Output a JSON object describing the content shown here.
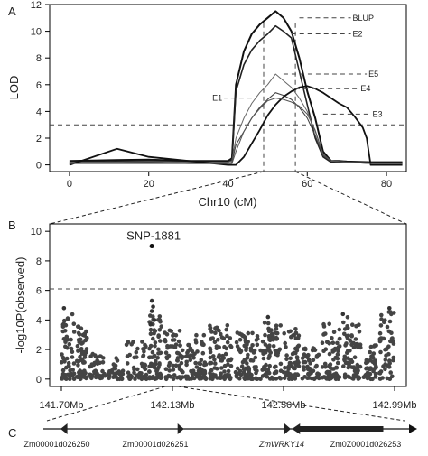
{
  "chart_data": [
    {
      "panel": "A",
      "type": "line",
      "xlabel": "Chr10 (cM)",
      "ylabel": "LOD",
      "xlim": [
        -5,
        85
      ],
      "ylim": [
        -0.5,
        12
      ],
      "xticks": [
        "0",
        "20",
        "40",
        "60",
        "80"
      ],
      "yticks": [
        "0",
        "2",
        "4",
        "6",
        "8",
        "10",
        "12"
      ],
      "threshold": 3.0,
      "series": [
        {
          "name": "BLUP",
          "x": [
            0,
            10,
            20,
            30,
            40,
            41,
            42,
            44,
            46,
            48,
            50,
            52,
            54,
            56,
            58,
            60,
            62,
            64,
            66,
            68,
            70,
            76,
            78,
            84
          ],
          "y": [
            0.3,
            0.35,
            0.4,
            0.3,
            0.3,
            0.5,
            6.0,
            8.5,
            9.8,
            10.5,
            11.0,
            11.5,
            11.0,
            10.0,
            8.0,
            5.5,
            3.5,
            1.0,
            0.3,
            0.3,
            0.25,
            0.2,
            0.2,
            0.2
          ]
        },
        {
          "name": "E2",
          "x": [
            0,
            10,
            20,
            30,
            40,
            41,
            42,
            44,
            46,
            48,
            50,
            52,
            54,
            56,
            58,
            60,
            62,
            64,
            66,
            68,
            70,
            76,
            78,
            84
          ],
          "y": [
            0.2,
            0.25,
            0.3,
            0.2,
            0.2,
            0.4,
            5.5,
            7.5,
            8.6,
            9.3,
            9.8,
            10.4,
            10.0,
            9.5,
            7.0,
            4.5,
            2.0,
            0.6,
            0.2,
            0.2,
            0.2,
            0.15,
            0.15,
            0.15
          ]
        },
        {
          "name": "E5",
          "x": [
            0,
            10,
            20,
            30,
            40,
            41,
            42,
            44,
            46,
            48,
            50,
            52,
            54,
            56,
            58,
            60,
            62,
            64,
            66,
            70,
            76,
            84
          ],
          "y": [
            0.2,
            0.2,
            0.25,
            0.2,
            0.2,
            0.3,
            2.0,
            3.5,
            4.6,
            5.4,
            6.0,
            6.8,
            6.3,
            5.8,
            5.0,
            4.0,
            2.5,
            0.8,
            0.3,
            0.2,
            0.15,
            0.1
          ]
        },
        {
          "name": "E4",
          "x": [
            0,
            10,
            20,
            30,
            40,
            41,
            42,
            44,
            46,
            48,
            50,
            52,
            54,
            56,
            58,
            60,
            62,
            64,
            66,
            70,
            76,
            84
          ],
          "y": [
            0.1,
            0.15,
            0.2,
            0.1,
            0.1,
            0.2,
            1.5,
            2.5,
            3.5,
            4.3,
            4.9,
            5.4,
            5.2,
            4.9,
            4.3,
            3.5,
            2.2,
            0.7,
            0.3,
            0.2,
            0.1,
            0.1
          ]
        },
        {
          "name": "E3",
          "x": [
            0,
            12,
            20,
            30,
            40,
            41,
            42,
            44,
            46,
            48,
            50,
            52,
            54,
            56,
            58,
            60,
            62,
            64,
            66,
            68,
            70,
            72,
            74,
            75,
            76,
            78,
            84
          ],
          "y": [
            0.0,
            1.2,
            0.6,
            0.3,
            0.0,
            0.0,
            0.0,
            0.6,
            1.6,
            2.6,
            3.7,
            4.5,
            5.1,
            5.5,
            5.8,
            5.9,
            5.7,
            5.4,
            5.0,
            4.6,
            4.3,
            3.6,
            2.8,
            2.0,
            0.0,
            0.0,
            0.0
          ]
        },
        {
          "name": "E1",
          "x": [
            0,
            10,
            20,
            30,
            40,
            41,
            42,
            44,
            46,
            48,
            50,
            52,
            54,
            56,
            58,
            60,
            62,
            64,
            66,
            70,
            76,
            84
          ],
          "y": [
            0.1,
            0.1,
            0.1,
            0.1,
            0.1,
            0.1,
            1.0,
            2.5,
            3.5,
            4.2,
            4.8,
            5.0,
            4.9,
            4.7,
            4.4,
            3.8,
            2.6,
            0.8,
            0.3,
            0.2,
            0.1,
            0.1
          ]
        }
      ],
      "labels": [
        "BLUP",
        "E2",
        "E5",
        "E4",
        "E1",
        "E3"
      ],
      "marker_lines_x": [
        49,
        57
      ]
    },
    {
      "panel": "B",
      "type": "scatter",
      "ylabel": "-log10P(observed)",
      "xlim_mb": [
        141.7,
        142.99
      ],
      "ylim": [
        -0.5,
        10.5
      ],
      "xticks": [
        "141.70Mb",
        "142.13Mb",
        "142.56Mb",
        "142.99Mb"
      ],
      "yticks": [
        "0",
        "2",
        "4",
        "6",
        "8",
        "10"
      ],
      "threshold": 6.1,
      "highlight": {
        "label": "SNP-1881",
        "x_mb": 142.05,
        "y": 9.0
      },
      "clusters": [
        {
          "x_mb": [
            141.7,
            141.75
          ],
          "ymax": 4.5,
          "n": 60
        },
        {
          "x_mb": [
            141.76,
            141.8
          ],
          "ymax": 3.6,
          "n": 60
        },
        {
          "x_mb": [
            141.81,
            141.87
          ],
          "ymax": 1.8,
          "n": 35
        },
        {
          "x_mb": [
            141.88,
            141.94
          ],
          "ymax": 1.5,
          "n": 35
        },
        {
          "x_mb": [
            141.95,
            142.03
          ],
          "ymax": 2.6,
          "n": 55
        },
        {
          "x_mb": [
            142.04,
            142.09
          ],
          "ymax": 4.3,
          "n": 70
        },
        {
          "x_mb": [
            142.1,
            142.17
          ],
          "ymax": 3.3,
          "n": 60
        },
        {
          "x_mb": [
            142.18,
            142.26
          ],
          "ymax": 3.0,
          "n": 70
        },
        {
          "x_mb": [
            142.27,
            142.36
          ],
          "ymax": 3.7,
          "n": 85
        },
        {
          "x_mb": [
            142.37,
            142.46
          ],
          "ymax": 3.2,
          "n": 85
        },
        {
          "x_mb": [
            142.47,
            142.55
          ],
          "ymax": 4.0,
          "n": 80
        },
        {
          "x_mb": [
            142.56,
            142.62
          ],
          "ymax": 3.4,
          "n": 60
        },
        {
          "x_mb": [
            142.63,
            142.7
          ],
          "ymax": 2.1,
          "n": 50
        },
        {
          "x_mb": [
            142.71,
            142.78
          ],
          "ymax": 3.8,
          "n": 70
        },
        {
          "x_mb": [
            142.79,
            142.86
          ],
          "ymax": 4.2,
          "n": 70
        },
        {
          "x_mb": [
            142.87,
            142.92
          ],
          "ymax": 2.3,
          "n": 40
        },
        {
          "x_mb": [
            142.93,
            142.99
          ],
          "ymax": 4.6,
          "n": 55
        }
      ],
      "outliers": [
        {
          "x_mb": 142.05,
          "y": 5.3
        },
        {
          "x_mb": 142.055,
          "y": 4.9
        },
        {
          "x_mb": 142.05,
          "y": 4.6
        },
        {
          "x_mb": 142.06,
          "y": 4.0
        },
        {
          "x_mb": 142.045,
          "y": 3.7
        },
        {
          "x_mb": 141.71,
          "y": 4.8
        },
        {
          "x_mb": 142.97,
          "y": 4.8
        },
        {
          "x_mb": 142.5,
          "y": 4.2
        },
        {
          "x_mb": 142.79,
          "y": 4.4
        }
      ]
    },
    {
      "panel": "C",
      "type": "gene-track",
      "genes": [
        {
          "label": "Zm00001d026250",
          "italic": false,
          "start_mb": 142.01,
          "end_mb": 142.022,
          "strand": "-"
        },
        {
          "label": "Zm00001d026251",
          "italic": false,
          "start_mb": 142.215,
          "end_mb": 142.226,
          "strand": "+"
        },
        {
          "label": "ZmWRKY14",
          "italic": true,
          "start_mb": 142.402,
          "end_mb": 142.413,
          "strand": "+"
        },
        {
          "label": "Zm0Z0001d026253",
          "italic": false,
          "start_mb": 142.415,
          "end_mb": 142.575,
          "strand": "-"
        }
      ],
      "track_range_mb": [
        141.98,
        142.62
      ]
    }
  ],
  "panel_letters": {
    "a": "A",
    "b": "B",
    "c": "C"
  }
}
